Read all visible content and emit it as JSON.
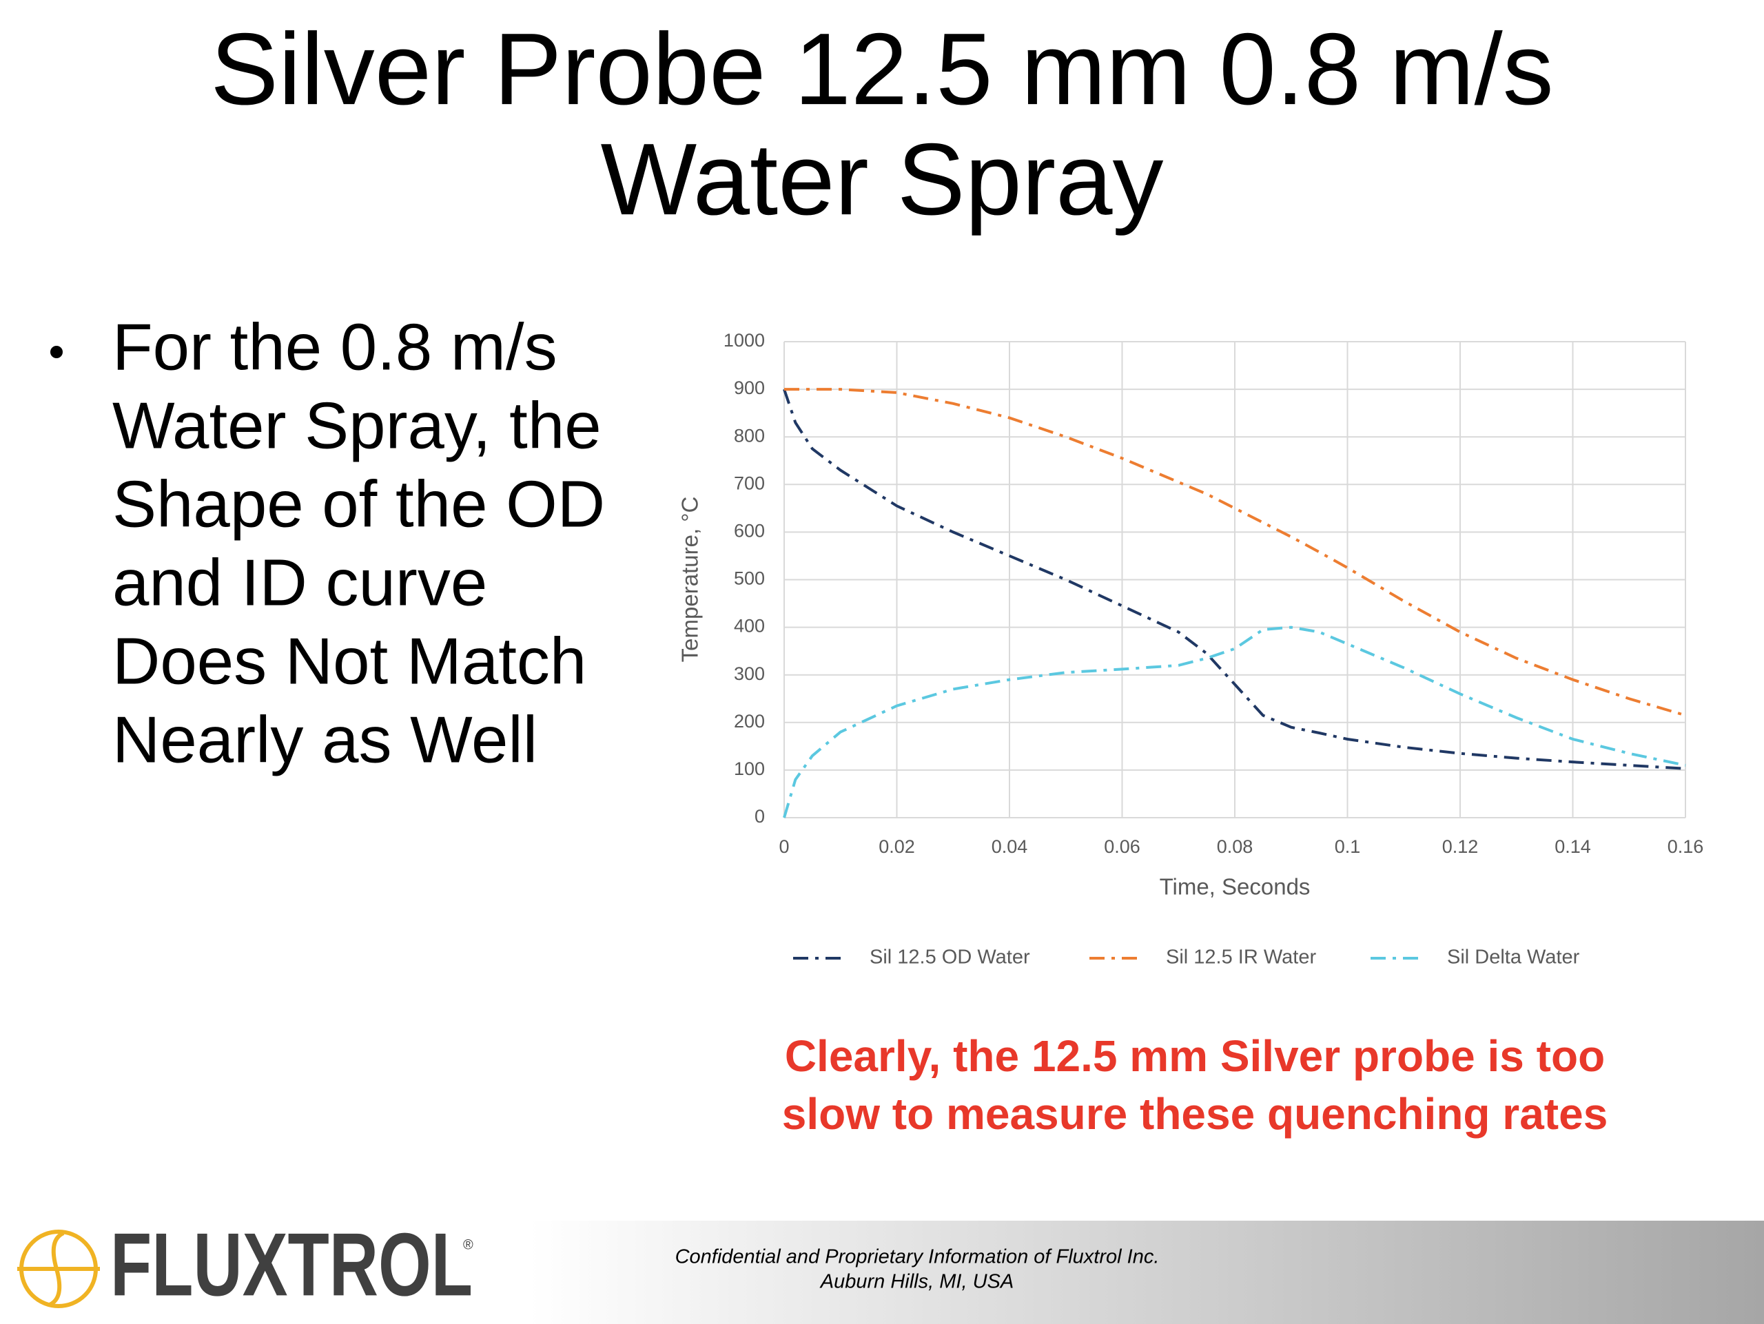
{
  "title": [
    "Silver Probe 12.5 mm 0.8 m/s",
    "Water Spray"
  ],
  "bullet": [
    "For the 0.8 m/s",
    "Water Spray, the",
    "Shape of the OD",
    "and ID curve",
    "Does Not Match",
    "Nearly as Well"
  ],
  "note": [
    "Clearly, the 12.5 mm Silver probe is too",
    "slow to measure these quenching rates"
  ],
  "footer": [
    "Confidential and Proprietary Information of Fluxtrol Inc.",
    "Auburn Hills, MI, USA"
  ],
  "logo": {
    "text": "FLUXTROL",
    "mark": "®"
  },
  "chart_data": {
    "type": "line",
    "x_label": "Time, Seconds",
    "y_label": "Temperature, °C",
    "x": [
      0,
      0.002,
      0.005,
      0.01,
      0.02,
      0.03,
      0.04,
      0.05,
      0.06,
      0.07,
      0.075,
      0.08,
      0.085,
      0.09,
      0.095,
      0.1,
      0.11,
      0.12,
      0.13,
      0.14,
      0.15,
      0.16
    ],
    "series": [
      {
        "name": "Sil 12.5 OD Water",
        "color": "#203864",
        "values": [
          900,
          830,
          775,
          730,
          655,
          600,
          550,
          500,
          445,
          390,
          345,
          280,
          215,
          190,
          178,
          165,
          148,
          135,
          125,
          117,
          110,
          103
        ]
      },
      {
        "name": "Sil 12.5 IR Water",
        "color": "#ed7d31",
        "values": [
          900,
          900,
          900,
          900,
          893,
          870,
          840,
          800,
          755,
          705,
          680,
          650,
          620,
          590,
          558,
          525,
          455,
          390,
          335,
          290,
          250,
          215
        ]
      },
      {
        "name": "Sil Delta Water",
        "color": "#5bc8e0",
        "values": [
          0,
          80,
          130,
          180,
          235,
          270,
          290,
          305,
          312,
          320,
          335,
          355,
          395,
          400,
          390,
          365,
          315,
          260,
          210,
          165,
          135,
          110
        ]
      }
    ],
    "xlim": [
      0,
      0.16
    ],
    "xticks": [
      0,
      0.02,
      0.04,
      0.06,
      0.08,
      0.1,
      0.12,
      0.14,
      0.16
    ],
    "ylim": [
      0,
      1000
    ],
    "yticks": [
      0,
      100,
      200,
      300,
      400,
      500,
      600,
      700,
      800,
      900,
      1000
    ],
    "grid": true,
    "legend": "bottom"
  }
}
